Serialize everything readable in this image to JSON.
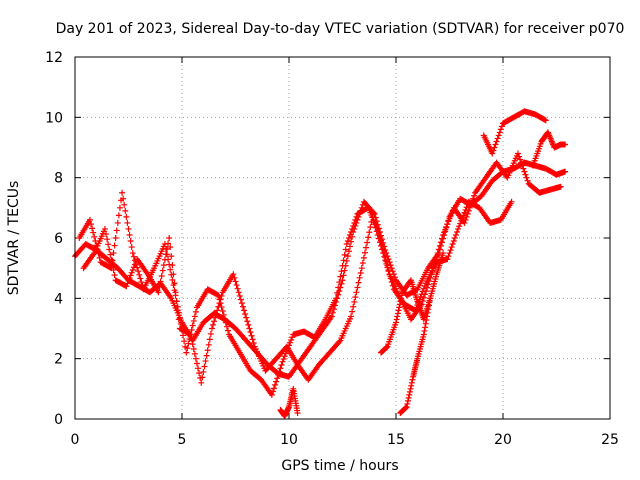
{
  "chart_data": {
    "type": "scatter",
    "title": "Day 201 of 2023, Sidereal Day-to-day VTEC variation (SDTVAR) for receiver p070",
    "xlabel": "GPS time / hours",
    "ylabel": "SDTVAR / TECUs",
    "xlim": [
      0,
      25
    ],
    "ylim": [
      0,
      12
    ],
    "xticks": [
      "0",
      "5",
      "10",
      "15",
      "20",
      "25"
    ],
    "yticks": [
      "0",
      "2",
      "4",
      "6",
      "8",
      "10",
      "12"
    ],
    "grid": true,
    "marker": "+",
    "series_color": "#ff0000",
    "series": [
      {
        "name": "SDTVAR",
        "traces": [
          {
            "x": [
              0.0,
              0.5,
              1.0,
              1.5,
              2.0,
              2.5,
              3.0,
              3.5,
              4.0,
              4.5,
              5.0,
              5.5,
              6.0,
              6.5,
              7.0,
              7.5,
              8.0,
              8.5,
              9.0,
              9.5,
              10.0,
              10.5,
              11.0,
              11.5,
              12.0,
              12.5,
              13.0,
              13.5,
              14.0,
              14.5,
              15.0,
              15.5,
              16.0,
              16.5,
              17.0,
              17.5,
              18.0,
              18.5,
              19.0,
              19.5,
              20.0,
              20.5,
              21.0,
              21.5,
              22.0,
              22.5,
              22.9
            ],
            "y": [
              5.4,
              5.8,
              5.6,
              5.3,
              5.0,
              4.6,
              4.4,
              4.2,
              4.5,
              4.0,
              3.2,
              2.6,
              3.2,
              3.5,
              3.3,
              3.0,
              2.6,
              2.2,
              1.8,
              1.5,
              1.4,
              1.9,
              2.4,
              2.9,
              3.4,
              4.6,
              6.2,
              7.2,
              6.8,
              5.6,
              4.6,
              4.1,
              4.3,
              5.0,
              5.5,
              6.7,
              7.3,
              7.1,
              7.4,
              7.9,
              8.2,
              8.3,
              8.5,
              8.4,
              8.3,
              8.1,
              8.2
            ]
          },
          {
            "x": [
              0.2,
              0.7,
              1.2,
              1.7,
              2.2,
              2.7,
              3.2,
              3.7,
              4.2,
              4.7,
              5.2,
              5.7,
              6.2,
              6.7,
              7.2,
              7.7,
              8.2,
              8.7,
              9.2,
              9.7,
              10.2,
              10.7,
              11.2,
              11.7,
              12.2,
              12.7,
              13.2,
              13.7,
              14.2,
              14.7,
              15.2,
              15.7,
              16.2,
              16.7,
              17.2,
              17.7,
              18.2,
              18.7,
              19.2,
              19.7,
              20.2,
              20.7,
              21.2,
              21.7,
              22.2,
              22.7
            ],
            "y": [
              6.0,
              6.6,
              5.2,
              5.0,
              7.5,
              5.5,
              4.3,
              5.0,
              5.8,
              4.1,
              2.2,
              3.7,
              4.3,
              4.1,
              2.8,
              2.2,
              1.6,
              1.3,
              0.8,
              1.9,
              2.8,
              2.9,
              2.7,
              3.3,
              4.0,
              5.8,
              6.8,
              7.0,
              6.2,
              4.8,
              4.0,
              3.3,
              3.8,
              4.9,
              6.1,
              7.0,
              6.5,
              7.5,
              8.0,
              8.5,
              8.0,
              8.8,
              7.8,
              7.5,
              7.6,
              7.7
            ]
          },
          {
            "x": [
              0.4,
              0.9,
              1.4,
              1.9,
              2.4,
              2.9,
              3.4,
              3.9,
              4.4,
              4.9,
              5.4,
              5.9,
              6.4,
              6.9,
              7.4,
              7.9,
              8.4,
              8.9,
              9.4,
              9.9,
              10.4,
              10.9,
              11.4,
              11.9,
              12.4,
              12.9,
              13.4,
              13.9,
              14.4,
              14.9,
              15.4,
              15.9,
              16.4,
              16.9,
              17.4,
              17.9,
              18.4,
              18.9,
              19.4,
              19.9,
              20.4
            ],
            "y": [
              5.0,
              5.5,
              6.3,
              4.6,
              4.4,
              5.3,
              4.8,
              4.2,
              6.0,
              3.0,
              2.8,
              1.2,
              3.0,
              4.2,
              4.8,
              3.6,
              2.4,
              1.6,
              2.0,
              2.4,
              1.8,
              1.3,
              1.8,
              2.2,
              2.6,
              3.4,
              5.0,
              6.7,
              5.5,
              4.3,
              3.8,
              3.6,
              4.5,
              5.2,
              5.3,
              6.3,
              7.2,
              7.0,
              6.5,
              6.6,
              7.2
            ]
          },
          {
            "x": [
              14.3,
              14.6,
              15.0,
              15.3,
              15.7,
              16.0,
              16.3,
              16.6
            ],
            "y": [
              2.2,
              2.4,
              3.2,
              4.2,
              4.6,
              3.9,
              3.3,
              4.0
            ]
          },
          {
            "x": [
              15.2,
              15.5,
              15.8,
              16.0,
              16.3,
              16.6,
              16.9,
              17.2
            ],
            "y": [
              0.2,
              0.4,
              1.4,
              2.0,
              2.8,
              4.0,
              4.8,
              5.5
            ]
          },
          {
            "x": [
              19.1,
              19.5,
              20.0,
              20.5,
              21.0,
              21.5,
              22.0
            ],
            "y": [
              9.4,
              8.8,
              9.8,
              10.0,
              10.2,
              10.1,
              9.9
            ]
          },
          {
            "x": [
              21.4,
              21.8,
              22.1,
              22.4,
              22.7,
              22.9
            ],
            "y": [
              8.4,
              9.2,
              9.5,
              9.0,
              9.1,
              9.1
            ]
          },
          {
            "x": [
              9.6,
              9.8,
              10.0,
              10.2,
              10.4
            ],
            "y": [
              0.3,
              0.1,
              0.4,
              1.0,
              0.2
            ]
          }
        ]
      }
    ]
  }
}
